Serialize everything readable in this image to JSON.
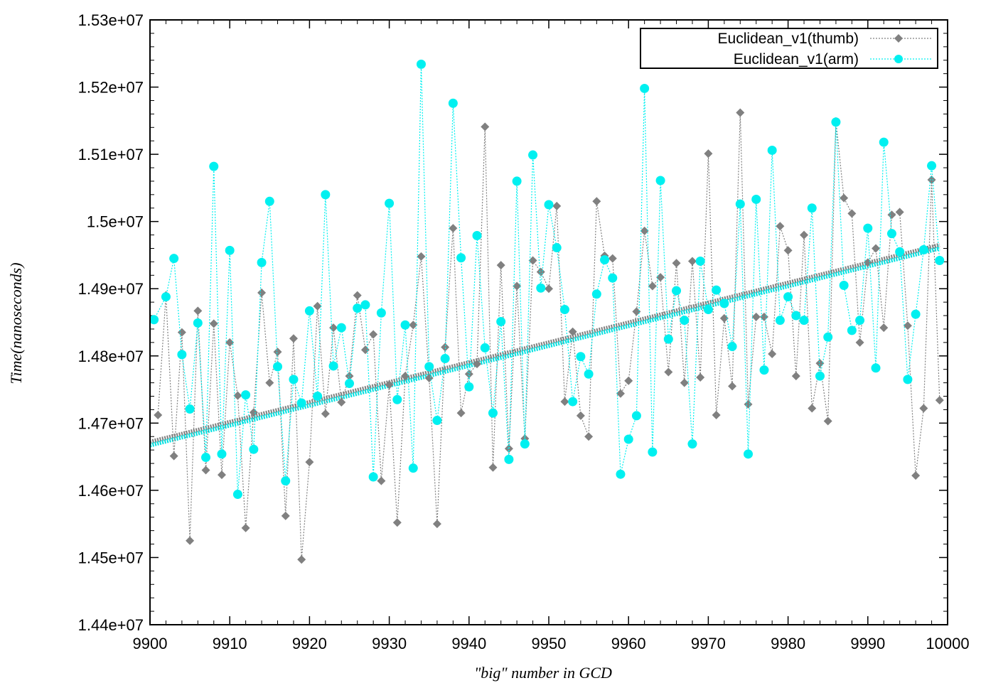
{
  "chart_data": {
    "type": "line",
    "xlabel": "\"big\" number in GCD",
    "ylabel": "Time(nanoseconds)",
    "xlim": [
      9900,
      10000
    ],
    "ylim": [
      14400000,
      15300000
    ],
    "x_ticks": [
      9900,
      9910,
      9920,
      9930,
      9940,
      9950,
      9960,
      9970,
      9980,
      9990,
      10000
    ],
    "x_tick_labels": [
      "9900",
      "9910",
      "9920",
      "9930",
      "9940",
      "9950",
      "9960",
      "9970",
      "9980",
      "9990",
      "10000"
    ],
    "y_ticks": [
      14400000,
      14500000,
      14600000,
      14700000,
      14800000,
      14900000,
      15000000,
      15100000,
      15200000,
      15300000
    ],
    "y_tick_labels": [
      "1.44e+07",
      "1.45e+07",
      "1.46e+07",
      "1.47e+07",
      "1.48e+07",
      "1.49e+07",
      "1.5e+07",
      "1.51e+07",
      "1.52e+07",
      "1.53e+07"
    ],
    "grid": false,
    "legend_position": "top-right",
    "series": [
      {
        "name": "Euclidean_v1(thumb)",
        "color": "#808080",
        "marker": "diamond",
        "line": "dotted",
        "x": [
          9901,
          9902,
          9903,
          9904,
          9905,
          9906,
          9907,
          9908,
          9909,
          9910,
          9911,
          9912,
          9913,
          9914,
          9915,
          9916,
          9917,
          9918,
          9919,
          9920,
          9921,
          9922,
          9923,
          9924,
          9925,
          9926,
          9927,
          9928,
          9929,
          9930,
          9931,
          9932,
          9933,
          9934,
          9935,
          9936,
          9937,
          9938,
          9939,
          9940,
          9941,
          9942,
          9943,
          9944,
          9945,
          9946,
          9947,
          9948,
          9949,
          9950,
          9951,
          9952,
          9953,
          9954,
          9955,
          9956,
          9957,
          9958,
          9959,
          9960,
          9961,
          9962,
          9963,
          9964,
          9965,
          9966,
          9967,
          9968,
          9969,
          9970,
          9971,
          9972,
          9973,
          9974,
          9975,
          9976,
          9977,
          9978,
          9979,
          9980,
          9981,
          9982,
          9983,
          9984,
          9985,
          9986,
          9987,
          9988,
          9989,
          9990,
          9991,
          9992,
          9993,
          9994,
          9995,
          9996,
          9997,
          9998,
          9999
        ],
        "y": [
          14712000,
          14890000,
          14651000,
          14835000,
          14525000,
          14867000,
          14630000,
          14848000,
          14623000,
          14820000,
          14741000,
          14544000,
          14716000,
          14894000,
          14760000,
          14806000,
          14562000,
          14826000,
          14497000,
          14642000,
          14874000,
          14714000,
          14842000,
          14731000,
          14770000,
          14890000,
          14809000,
          14832000,
          14614000,
          14757000,
          14552000,
          14770000,
          14846000,
          14948000,
          14767000,
          14550000,
          14813000,
          14990000,
          14715000,
          14773000,
          14788000,
          15141000,
          14634000,
          14935000,
          14662000,
          14904000,
          14677000,
          14942000,
          14925000,
          14900000,
          15023000,
          14732000,
          14836000,
          14711000,
          14680000,
          15030000,
          14949000,
          14945000,
          14744000,
          14763000,
          14866000,
          14986000,
          14904000,
          14917000,
          14776000,
          14938000,
          14760000,
          14941000,
          14768000,
          15101000,
          14712000,
          14856000,
          14755000,
          15162000,
          14728000,
          14858000,
          14858000,
          14803000,
          14993000,
          14957000,
          14770000,
          14980000,
          14722000,
          14789000,
          14703000,
          15149000,
          15035000,
          15012000,
          14820000,
          14939000,
          14960000,
          14842000,
          15010000,
          15014000,
          14845000,
          14622000,
          14722000,
          15062000,
          14734000
        ]
      },
      {
        "name": "Euclidean_v1(arm)",
        "color": "#00f0f0",
        "marker": "circle",
        "line": "dotted",
        "x": [
          9900.5,
          9902,
          9903,
          9904,
          9905,
          9906,
          9907,
          9908,
          9909,
          9910,
          9911,
          9912,
          9913,
          9914,
          9915,
          9916,
          9917,
          9918,
          9919,
          9920,
          9921,
          9922,
          9923,
          9924,
          9925,
          9926,
          9927,
          9928,
          9929,
          9930,
          9931,
          9932,
          9933,
          9934,
          9935,
          9936,
          9937,
          9938,
          9939,
          9940,
          9941,
          9942,
          9943,
          9944,
          9945,
          9946,
          9947,
          9948,
          9949,
          9950,
          9951,
          9952,
          9953,
          9954,
          9955,
          9956,
          9957,
          9958,
          9959,
          9960,
          9961,
          9962,
          9963,
          9964,
          9965,
          9966,
          9967,
          9968,
          9969,
          9970,
          9971,
          9972,
          9973,
          9974,
          9975,
          9976,
          9977,
          9978,
          9979,
          9980,
          9981,
          9982,
          9983,
          9984,
          9985,
          9986,
          9987,
          9988,
          9989,
          9990,
          9991,
          9992,
          9993,
          9994,
          9995,
          9996,
          9997,
          9998,
          9999
        ],
        "y": [
          14854000,
          14888000,
          14945000,
          14802000,
          14721000,
          14849000,
          14649000,
          15082000,
          14654000,
          14957000,
          14594000,
          14742000,
          14661000,
          14939000,
          15030000,
          14784000,
          14614000,
          14765000,
          14730000,
          14867000,
          14740000,
          15040000,
          14785000,
          14842000,
          14759000,
          14871000,
          14876000,
          14620000,
          14864000,
          15027000,
          14735000,
          14846000,
          14633000,
          15234000,
          14784000,
          14704000,
          14796000,
          15176000,
          14946000,
          14754000,
          14979000,
          14812000,
          14715000,
          14851000,
          14646000,
          15060000,
          14669000,
          15099000,
          14901000,
          15025000,
          14961000,
          14869000,
          14732000,
          14799000,
          14773000,
          14892000,
          14943000,
          14916000,
          14624000,
          14676000,
          14711000,
          15198000,
          14657000,
          15061000,
          14825000,
          14897000,
          14853000,
          14669000,
          14941000,
          14869000,
          14898000,
          14878000,
          14814000,
          15026000,
          14654000,
          15033000,
          14779000,
          15106000,
          14853000,
          14888000,
          14860000,
          14853000,
          15020000,
          14770000,
          14828000,
          15148000,
          14905000,
          14838000,
          14853000,
          14990000,
          14782000,
          15118000,
          14982000,
          14955000,
          14765000,
          14862000,
          14958000,
          15083000,
          14942000
        ]
      }
    ],
    "trend_lines": [
      {
        "color": "#808080",
        "x": [
          9900,
          9999
        ],
        "y": [
          14672000,
          14965000
        ]
      },
      {
        "color": "#00e0e0",
        "x": [
          9900,
          9999
        ],
        "y": [
          14667000,
          14960000
        ]
      }
    ]
  }
}
